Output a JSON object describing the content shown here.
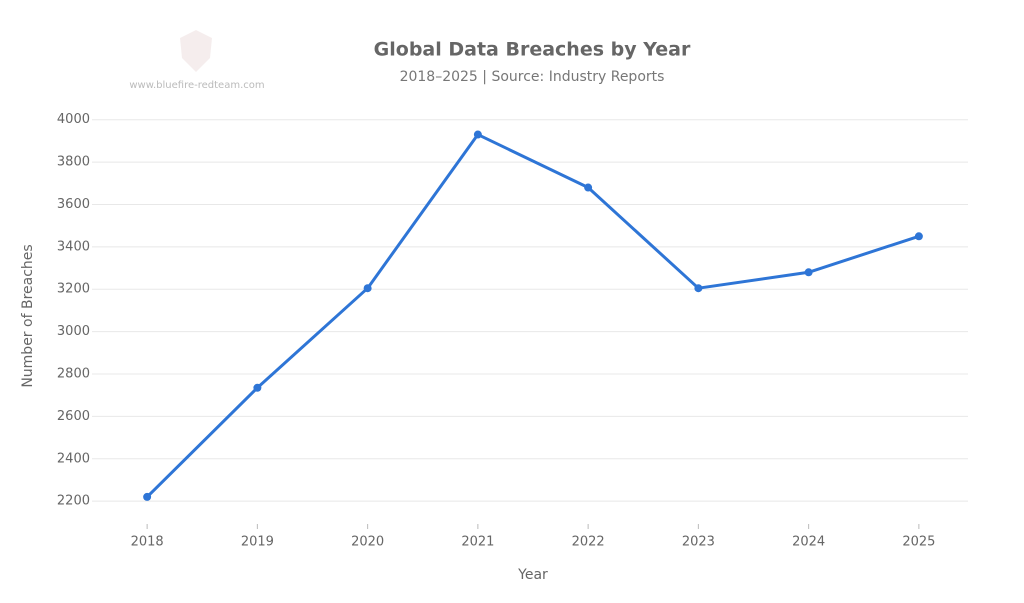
{
  "watermark": "www.bluefire-redteam.com",
  "chart_data": {
    "type": "line",
    "title": "Global Data Breaches by Year",
    "subtitle": "2018–2025 | Source: Industry Reports",
    "x_label": "Year",
    "y_label": "Number of Breaches",
    "categories": [
      "2018",
      "2019",
      "2020",
      "2021",
      "2022",
      "2023",
      "2024",
      "2025"
    ],
    "series": [
      {
        "name": "Breaches",
        "color": "#2e75d6",
        "values": [
          2220,
          2735,
          3205,
          3930,
          3680,
          3205,
          3280,
          3450
        ]
      }
    ],
    "ylim": [
      2130,
      4060
    ],
    "yticks": [
      2200,
      2400,
      2600,
      2800,
      3000,
      3200,
      3400,
      3600,
      3800,
      4000
    ],
    "grid": true
  }
}
